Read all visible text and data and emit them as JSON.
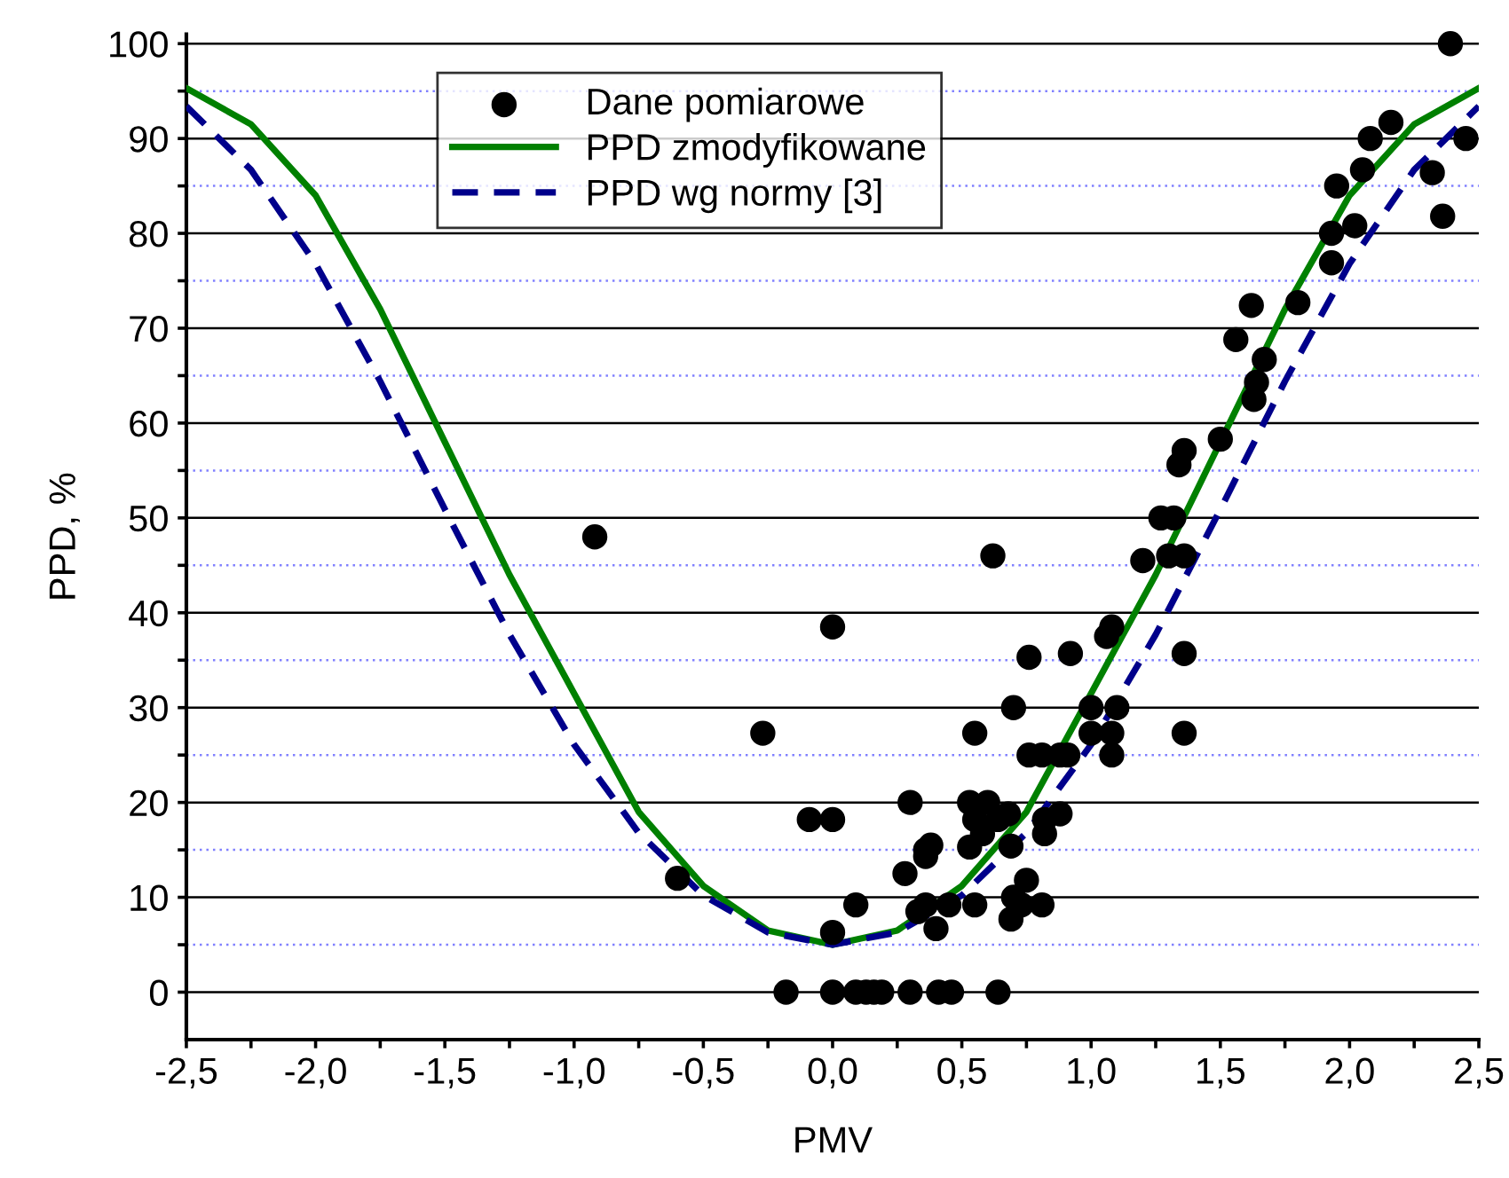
{
  "chart_data": {
    "type": "scatter",
    "xlabel": "PMV",
    "ylabel": "PPD, %",
    "xlim": [
      -2.5,
      2.5
    ],
    "ylim": [
      -5,
      101
    ],
    "xticks": [
      {
        "value": -2.5,
        "label": "-2,5"
      },
      {
        "value": -2.25,
        "label": null
      },
      {
        "value": -2.0,
        "label": "-2,0"
      },
      {
        "value": -1.75,
        "label": null
      },
      {
        "value": -1.5,
        "label": "-1,5"
      },
      {
        "value": -1.25,
        "label": null
      },
      {
        "value": -1.0,
        "label": "-1,0"
      },
      {
        "value": -0.75,
        "label": null
      },
      {
        "value": -0.5,
        "label": "-0,5"
      },
      {
        "value": -0.25,
        "label": null
      },
      {
        "value": 0,
        "label": "0,0"
      },
      {
        "value": 0.25,
        "label": null
      },
      {
        "value": 0.5,
        "label": "0,5"
      },
      {
        "value": 0.75,
        "label": null
      },
      {
        "value": 1.0,
        "label": "1,0"
      },
      {
        "value": 1.25,
        "label": null
      },
      {
        "value": 1.5,
        "label": "1,5"
      },
      {
        "value": 1.75,
        "label": null
      },
      {
        "value": 2.0,
        "label": "2,0"
      },
      {
        "value": 2.25,
        "label": null
      },
      {
        "value": 2.5,
        "label": "2,5"
      }
    ],
    "yticks": [
      0,
      {
        "value": 5,
        "label": null
      },
      10,
      {
        "value": 15,
        "label": null
      },
      20,
      {
        "value": 25,
        "label": null
      },
      30,
      {
        "value": 35,
        "label": null
      },
      40,
      {
        "value": 45,
        "label": null
      },
      50,
      {
        "value": 55,
        "label": null
      },
      60,
      {
        "value": 65,
        "label": null
      },
      70,
      {
        "value": 75,
        "label": null
      },
      80,
      {
        "value": 85,
        "label": null
      },
      90,
      {
        "value": 95,
        "label": null
      },
      100
    ],
    "grid": "y",
    "legend": "top left",
    "series": [
      {
        "name": "Dane pomiarowe",
        "color": "#000000",
        "marker": "circle",
        "x": [
          -0.92,
          -0.6,
          -0.27,
          -0.18,
          -0.09,
          0,
          0,
          0,
          0,
          0.09,
          0.09,
          0.13,
          0.16,
          0.19,
          0.3,
          0.28,
          0.3,
          0.33,
          0.36,
          0.36,
          0.38,
          0.36,
          0.4,
          0.41,
          0.46,
          0.45,
          0.53,
          0.53,
          0.55,
          0.55,
          0.55,
          0.58,
          0.6,
          0.62,
          0.64,
          0.64,
          0.68,
          0.7,
          0.69,
          0.7,
          0.69,
          0.73,
          0.75,
          0.76,
          0.76,
          0.81,
          0.82,
          0.82,
          0.81,
          0.88,
          0.88,
          0.91,
          0.92,
          1.0,
          1.0,
          1.06,
          1.08,
          1.08,
          1.08,
          1.1,
          1.2,
          1.27,
          1.32,
          1.3,
          1.36,
          1.34,
          1.36,
          1.36,
          1.36,
          1.5,
          1.56,
          1.62,
          1.63,
          1.64,
          1.67,
          1.8,
          1.93,
          1.93,
          1.95,
          2.02,
          2.05,
          2.08,
          2.16,
          2.32,
          2.36,
          2.39,
          2.45
        ],
        "values": [
          48,
          12,
          27.3,
          0,
          18.2,
          18.2,
          38.5,
          6.3,
          0,
          9.2,
          0,
          0,
          0,
          0,
          20,
          12.5,
          0,
          8.5,
          14.3,
          15,
          15.5,
          9.2,
          6.7,
          0,
          0,
          9.2,
          20,
          15.3,
          27.3,
          18.2,
          9.2,
          16.7,
          20,
          46,
          0,
          18.2,
          18.8,
          30,
          7.7,
          10,
          15.4,
          9.2,
          11.8,
          35.3,
          25,
          25,
          18.2,
          16.7,
          9.2,
          18.8,
          25,
          25,
          35.7,
          30,
          27.3,
          37.5,
          38.5,
          25,
          27.3,
          30,
          45.5,
          50,
          50,
          46,
          57.1,
          55.6,
          46,
          35.7,
          27.3,
          58.3,
          68.8,
          72.4,
          62.5,
          64.3,
          66.7,
          72.7,
          76.9,
          80,
          85,
          80.8,
          86.7,
          90,
          91.7,
          86.4,
          81.8,
          100,
          90
        ]
      },
      {
        "name": "PPD zmodyfikowane",
        "type": "line",
        "color": "#008000",
        "line_style": "solid",
        "marker": "none",
        "x": [
          -2.5,
          -2.25,
          -2.0,
          -1.75,
          -1.5,
          -1.25,
          -1.0,
          -0.75,
          -0.5,
          -0.25,
          0,
          0.25,
          0.5,
          0.75,
          1.0,
          1.25,
          1.5,
          1.75,
          2.0,
          2.25,
          2.5
        ],
        "values": [
          95.3,
          91.5,
          84,
          72,
          58,
          44,
          31.5,
          19,
          11.2,
          6.5,
          5,
          6.5,
          11.2,
          19,
          31.5,
          44,
          58,
          72,
          84,
          91.5,
          95.3
        ]
      },
      {
        "name": "PPD wg normy [3]",
        "type": "line",
        "color": "#00008b",
        "line_style": "dashed",
        "marker": "none",
        "x": [
          -2.5,
          -2.25,
          -2.0,
          -1.75,
          -1.5,
          -1.25,
          -1.0,
          -0.75,
          -0.5,
          -0.25,
          0,
          0.25,
          0.5,
          0.75,
          1.0,
          1.25,
          1.5,
          1.75,
          2.0,
          2.25,
          2.5
        ],
        "values": [
          93.4,
          86.7,
          76.8,
          64.4,
          50.9,
          37.7,
          26.1,
          16.8,
          10.2,
          6.3,
          5,
          6.3,
          10.2,
          16.8,
          26.1,
          37.7,
          50.9,
          64.4,
          76.8,
          86.7,
          93.4
        ]
      }
    ]
  }
}
